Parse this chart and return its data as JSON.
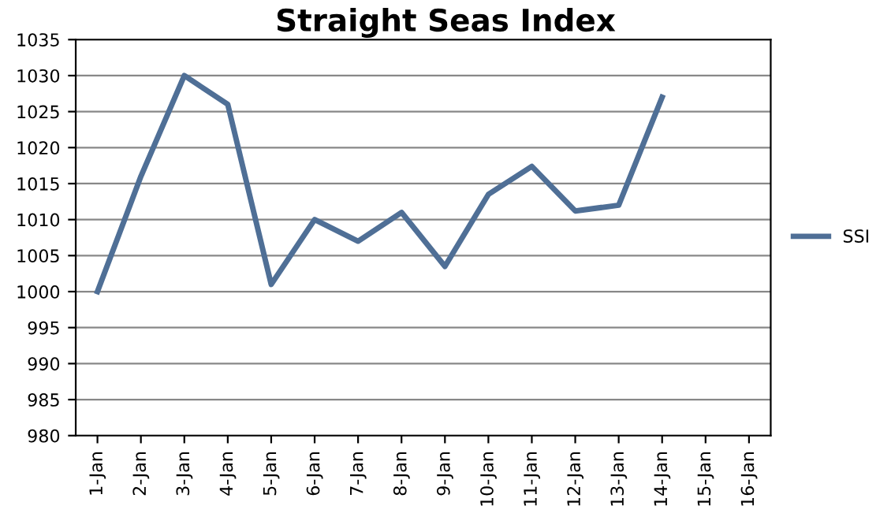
{
  "chart_data": {
    "type": "line",
    "title": "Straight Seas Index",
    "categories": [
      "1-Jan",
      "2-Jan",
      "3-Jan",
      "4-Jan",
      "5-Jan",
      "6-Jan",
      "7-Jan",
      "8-Jan",
      "9-Jan",
      "10-Jan",
      "11-Jan",
      "12-Jan",
      "13-Jan",
      "14-Jan",
      "15-Jan",
      "16-Jan"
    ],
    "series": [
      {
        "name": "SSI",
        "color": "#4f6f96",
        "values": [
          1000,
          1016,
          1030,
          1026,
          1001,
          1010,
          1007,
          1011,
          1003.5,
          1013.5,
          1017.4,
          1011.2,
          1012,
          1027,
          null,
          null
        ]
      }
    ],
    "ylim": [
      980,
      1035
    ],
    "yticks": [
      980,
      985,
      990,
      995,
      1000,
      1005,
      1010,
      1015,
      1020,
      1025,
      1030,
      1035
    ],
    "grid": "y",
    "legend": "right",
    "marker": "none",
    "line_style": "solid"
  }
}
